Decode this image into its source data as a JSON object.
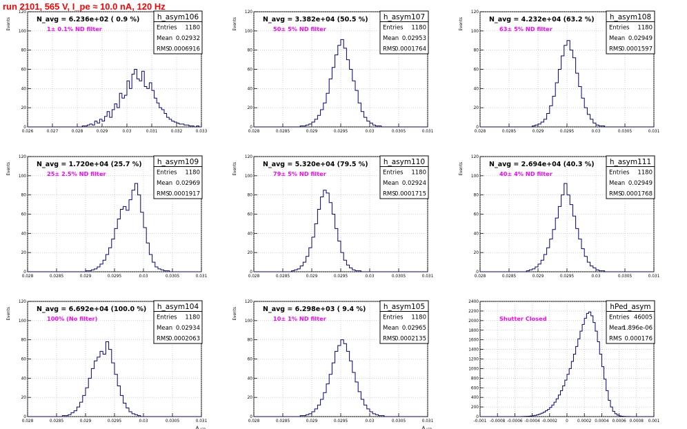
{
  "page_title": "run 2101,   565 V, I_pe ≈ 10.0 nA, 120 Hz",
  "colors": {
    "hist": "#000080",
    "title": "#ff0000",
    "annotation": "#ff00ff",
    "grid": "#b0b0b0"
  },
  "chart_data": [
    {
      "type": "histogram",
      "name": "h_asym106",
      "navg": "N_avg = 6.236e+02 ( 0.9 %)",
      "filter": "1± 0.1% ND filter",
      "stats": [
        [
          "Entries",
          "1180"
        ],
        [
          "Mean",
          "0.02932"
        ],
        [
          "RMS",
          "0.0006916"
        ]
      ],
      "ylabel": "Events",
      "xlabel": "",
      "xlim": [
        0.026,
        0.033
      ],
      "ylim": [
        0,
        120
      ],
      "xticks": [
        "0.026",
        "0.027",
        "0.028",
        "0.029",
        "0.03",
        "0.031",
        "0.032",
        "0.033"
      ],
      "yticks": [
        0,
        20,
        40,
        60,
        80,
        100,
        120
      ],
      "nbins": 70,
      "values": [
        0,
        0,
        0,
        0,
        0,
        0,
        0,
        0,
        0,
        0,
        0,
        0,
        0,
        0,
        0,
        0,
        0,
        0,
        0,
        0,
        0,
        0,
        1,
        1,
        2,
        3,
        2,
        6,
        4,
        8,
        6,
        11,
        16,
        10,
        18,
        24,
        20,
        35,
        30,
        33,
        48,
        40,
        55,
        60,
        50,
        48,
        58,
        42,
        40,
        46,
        38,
        30,
        25,
        20,
        18,
        14,
        10,
        8,
        6,
        5,
        4,
        3,
        3,
        2,
        2,
        1,
        1,
        0,
        1,
        0
      ]
    },
    {
      "type": "histogram",
      "name": "h_asym107",
      "navg": "N_avg = 3.382e+04 (50.5 %)",
      "filter": "50± 5% ND filter",
      "stats": [
        [
          "Entries",
          "1180"
        ],
        [
          "Mean",
          "0.02953"
        ],
        [
          "RMS",
          "0.0001764"
        ]
      ],
      "ylabel": "Events",
      "xlabel": "",
      "xlim": [
        0.028,
        0.031
      ],
      "ylim": [
        0,
        120
      ],
      "xticks": [
        "0.028",
        "0.0285",
        "0.029",
        "0.0295",
        "0.03",
        "0.0305",
        "0.031"
      ],
      "yticks": [
        0,
        20,
        40,
        60,
        80,
        100,
        120
      ],
      "nbins": 60,
      "values": [
        0,
        0,
        0,
        0,
        0,
        0,
        0,
        0,
        0,
        0,
        0,
        0,
        0,
        0,
        0,
        0,
        1,
        1,
        2,
        3,
        5,
        8,
        12,
        18,
        25,
        35,
        50,
        62,
        75,
        85,
        91,
        82,
        70,
        60,
        48,
        38,
        25,
        16,
        10,
        6,
        4,
        2,
        1,
        1,
        0,
        0,
        0,
        0,
        0,
        0,
        0,
        0,
        0,
        0,
        0,
        0,
        0,
        0,
        0,
        0
      ]
    },
    {
      "type": "histogram",
      "name": "h_asym108",
      "navg": "N_avg = 4.232e+04 (63.2 %)",
      "filter": "63± 5% ND filter",
      "stats": [
        [
          "Entries",
          "1180"
        ],
        [
          "Mean",
          "0.02949"
        ],
        [
          "RMS",
          "0.0001597"
        ]
      ],
      "ylabel": "Events",
      "xlabel": "",
      "xlim": [
        0.028,
        0.031
      ],
      "ylim": [
        0,
        120
      ],
      "xticks": [
        "0.028",
        "0.0285",
        "0.029",
        "0.0295",
        "0.03",
        "0.0305",
        "0.031"
      ],
      "yticks": [
        0,
        20,
        40,
        60,
        80,
        100,
        120
      ],
      "nbins": 60,
      "values": [
        0,
        0,
        0,
        0,
        0,
        0,
        0,
        0,
        0,
        0,
        0,
        0,
        0,
        0,
        0,
        0,
        0,
        0,
        1,
        2,
        3,
        5,
        8,
        14,
        22,
        32,
        46,
        60,
        74,
        85,
        90,
        80,
        72,
        56,
        42,
        30,
        20,
        13,
        8,
        4,
        2,
        1,
        1,
        0,
        0,
        0,
        0,
        0,
        0,
        0,
        0,
        0,
        0,
        0,
        0,
        0,
        0,
        0,
        0,
        0
      ]
    },
    {
      "type": "histogram",
      "name": "h_asym109",
      "navg": "N_avg = 1.720e+04 (25.7 %)",
      "filter": "25± 2.5% ND filter",
      "stats": [
        [
          "Entries",
          "1180"
        ],
        [
          "Mean",
          "0.02969"
        ],
        [
          "RMS",
          "0.0001917"
        ]
      ],
      "ylabel": "Events",
      "xlabel": "",
      "xlim": [
        0.028,
        0.031
      ],
      "ylim": [
        0,
        120
      ],
      "xticks": [
        "0.028",
        "0.0285",
        "0.029",
        "0.0295",
        "0.03",
        "0.0305",
        "0.031"
      ],
      "yticks": [
        0,
        20,
        40,
        60,
        80,
        100,
        120
      ],
      "nbins": 60,
      "values": [
        0,
        0,
        0,
        0,
        0,
        0,
        0,
        0,
        0,
        0,
        0,
        0,
        0,
        0,
        0,
        0,
        0,
        0,
        0,
        0,
        1,
        1,
        2,
        3,
        5,
        8,
        12,
        18,
        25,
        34,
        45,
        55,
        65,
        68,
        64,
        75,
        85,
        92,
        80,
        62,
        46,
        30,
        18,
        10,
        5,
        3,
        2,
        1,
        1,
        0,
        0,
        0,
        0,
        0,
        0,
        0,
        0,
        0,
        0,
        0
      ]
    },
    {
      "type": "histogram",
      "name": "h_asym110",
      "navg": "N_avg = 5.320e+04 (79.5 %)",
      "filter": "79± 5% ND filter",
      "stats": [
        [
          "Entries",
          "1180"
        ],
        [
          "Mean",
          "0.02924"
        ],
        [
          "RMS",
          "0.0001715"
        ]
      ],
      "ylabel": "Events",
      "xlabel": "",
      "xlim": [
        0.028,
        0.031
      ],
      "ylim": [
        0,
        120
      ],
      "xticks": [
        "0.028",
        "0.0285",
        "0.029",
        "0.0295",
        "0.03",
        "0.0305",
        "0.031"
      ],
      "yticks": [
        0,
        20,
        40,
        60,
        80,
        100,
        120
      ],
      "nbins": 60,
      "values": [
        0,
        0,
        0,
        0,
        0,
        0,
        0,
        0,
        0,
        0,
        0,
        0,
        0,
        1,
        2,
        3,
        6,
        10,
        16,
        25,
        36,
        50,
        65,
        78,
        85,
        82,
        72,
        60,
        45,
        32,
        20,
        12,
        7,
        4,
        2,
        1,
        1,
        0,
        0,
        0,
        0,
        0,
        0,
        0,
        0,
        0,
        0,
        0,
        0,
        0,
        0,
        0,
        0,
        0,
        0,
        0,
        0,
        0,
        0,
        0
      ]
    },
    {
      "type": "histogram",
      "name": "h_asym111",
      "navg": "N_avg = 2.694e+04 (40.3 %)",
      "filter": "40± 4% ND filter",
      "stats": [
        [
          "Entries",
          "1180"
        ],
        [
          "Mean",
          "0.02949"
        ],
        [
          "RMS",
          "0.0001768"
        ]
      ],
      "ylabel": "Events",
      "xlabel": "",
      "xlim": [
        0.028,
        0.031
      ],
      "ylim": [
        0,
        120
      ],
      "xticks": [
        "0.028",
        "0.0285",
        "0.029",
        "0.0295",
        "0.03",
        "0.0305",
        "0.031"
      ],
      "yticks": [
        0,
        20,
        40,
        60,
        80,
        100,
        120
      ],
      "nbins": 60,
      "values": [
        0,
        0,
        0,
        0,
        0,
        0,
        0,
        0,
        0,
        0,
        0,
        0,
        0,
        0,
        0,
        0,
        1,
        2,
        3,
        5,
        8,
        12,
        18,
        25,
        34,
        44,
        56,
        68,
        80,
        92,
        80,
        70,
        58,
        45,
        34,
        24,
        16,
        10,
        6,
        4,
        2,
        1,
        1,
        0,
        0,
        0,
        0,
        0,
        0,
        0,
        0,
        0,
        0,
        0,
        0,
        0,
        0,
        0,
        0,
        0
      ]
    },
    {
      "type": "histogram",
      "name": "h_asym104",
      "navg": "N_avg = 6.692e+04 (100.0 %)",
      "filter": "100% (No filter)",
      "stats": [
        [
          "Entries",
          "1180"
        ],
        [
          "Mean",
          "0.02934"
        ],
        [
          "RMS",
          "0.0002063"
        ]
      ],
      "ylabel": "Events",
      "xlabel": "A",
      "xsub": "LED",
      "xlim": [
        0.028,
        0.031
      ],
      "ylim": [
        0,
        120
      ],
      "xticks": [
        "0.028",
        "0.0285",
        "0.029",
        "0.0295",
        "0.03",
        "0.0305",
        "0.031"
      ],
      "yticks": [
        0,
        20,
        40,
        60,
        80,
        100,
        120
      ],
      "nbins": 60,
      "values": [
        0,
        0,
        0,
        0,
        0,
        0,
        0,
        0,
        0,
        0,
        0,
        0,
        1,
        1,
        2,
        4,
        6,
        10,
        15,
        22,
        30,
        40,
        50,
        58,
        62,
        68,
        65,
        78,
        70,
        56,
        44,
        32,
        22,
        14,
        9,
        5,
        3,
        2,
        1,
        0,
        0,
        0,
        0,
        0,
        0,
        0,
        0,
        0,
        0,
        0,
        0,
        0,
        0,
        0,
        0,
        0,
        0,
        0,
        0,
        0
      ]
    },
    {
      "type": "histogram",
      "name": "h_asym105",
      "navg": "N_avg = 6.298e+03 ( 9.4 %)",
      "filter": "10± 1% ND filter",
      "stats": [
        [
          "Entries",
          "1180"
        ],
        [
          "Mean",
          "0.02965"
        ],
        [
          "RMS",
          "0.0002135"
        ]
      ],
      "ylabel": "Events",
      "xlabel": "A",
      "xsub": "LED",
      "xlim": [
        0.028,
        0.031
      ],
      "ylim": [
        0,
        120
      ],
      "xticks": [
        "0.028",
        "0.0285",
        "0.029",
        "0.0295",
        "0.03",
        "0.0305",
        "0.031"
      ],
      "yticks": [
        0,
        20,
        40,
        60,
        80,
        100,
        120
      ],
      "nbins": 60,
      "values": [
        0,
        0,
        0,
        0,
        0,
        0,
        0,
        0,
        0,
        0,
        0,
        0,
        0,
        0,
        0,
        0,
        1,
        1,
        2,
        3,
        5,
        8,
        12,
        18,
        25,
        34,
        44,
        56,
        68,
        74,
        80,
        76,
        68,
        58,
        46,
        36,
        26,
        18,
        12,
        8,
        5,
        3,
        2,
        1,
        1,
        0,
        0,
        0,
        0,
        0,
        0,
        0,
        0,
        0,
        0,
        0,
        0,
        0,
        0,
        0
      ]
    },
    {
      "type": "histogram",
      "name": "hPed_asym",
      "navg": "",
      "filter": "Shutter Closed",
      "stats": [
        [
          "Entries",
          "46005"
        ],
        [
          "Mean",
          "1.896e-06"
        ],
        [
          "RMS",
          "0.000176"
        ]
      ],
      "ylabel": "",
      "xlabel": "",
      "xlim": [
        -0.001,
        0.001
      ],
      "ylim": [
        0,
        2400
      ],
      "xticks": [
        "-0.001",
        "-0.0008",
        "-0.0006",
        "-0.0004",
        "-0.0002",
        "0",
        "0.0002",
        "0.0004",
        "0.0006",
        "0.0008",
        "0.001"
      ],
      "yticks": [
        0,
        200,
        400,
        600,
        800,
        1000,
        1200,
        1400,
        1600,
        1800,
        2000,
        2200,
        2400
      ],
      "nbins": 80,
      "values": [
        0,
        0,
        0,
        0,
        0,
        0,
        0,
        0,
        0,
        0,
        0,
        0,
        0,
        0,
        0,
        0,
        0,
        0,
        0,
        2,
        3,
        5,
        8,
        12,
        18,
        26,
        38,
        52,
        70,
        92,
        120,
        150,
        190,
        240,
        300,
        370,
        450,
        540,
        640,
        760,
        880,
        1000,
        1150,
        1300,
        1460,
        1620,
        1780,
        1920,
        2050,
        2150,
        2180,
        2100,
        1960,
        1780,
        1560,
        1300,
        1040,
        780,
        540,
        340,
        200,
        110,
        60,
        30,
        15,
        8,
        4,
        2,
        1,
        0,
        0,
        0,
        0,
        0,
        0,
        0,
        0,
        0,
        0,
        0
      ]
    }
  ]
}
